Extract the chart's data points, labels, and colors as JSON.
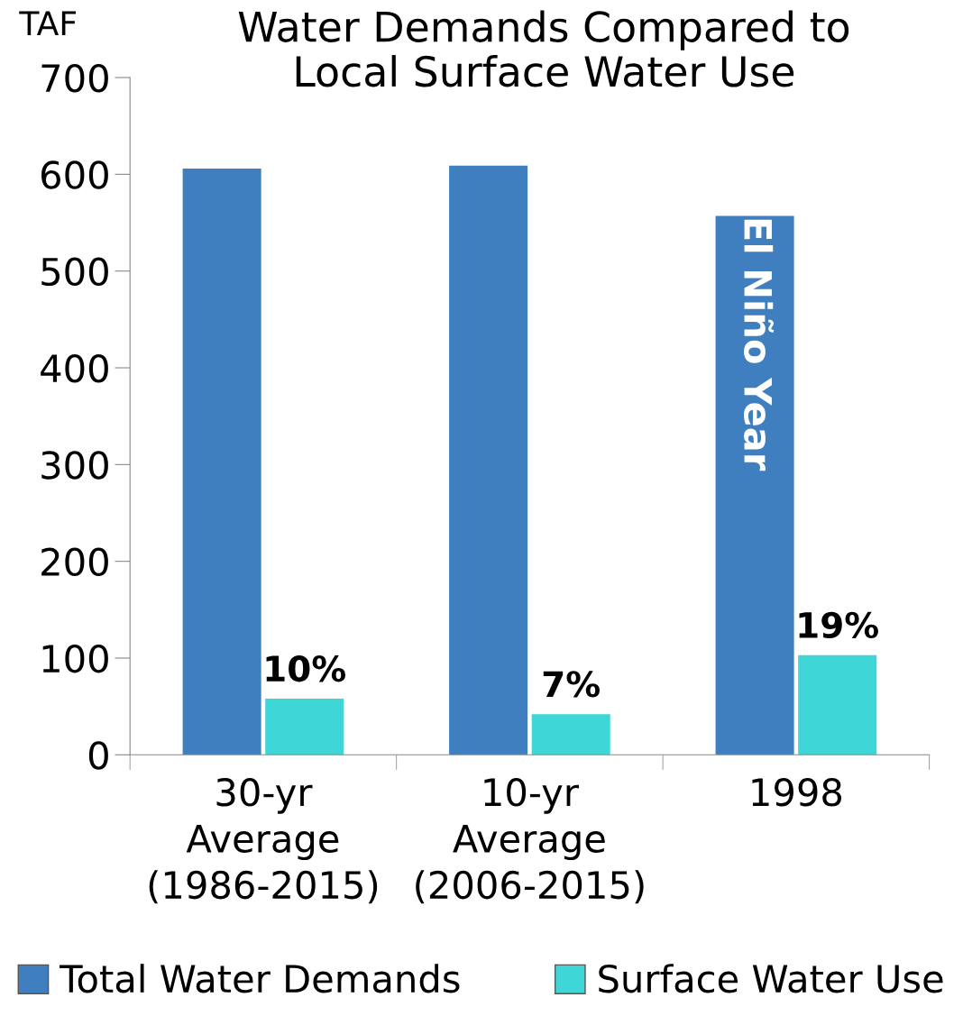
{
  "chart_data": {
    "type": "bar",
    "title": "Water Demands Compared to\nLocal Surface Water Use",
    "ylabel": "TAF",
    "categories": [
      "30-yr\nAverage\n(1986-2015)",
      "10-yr\nAverage\n(2006-2015)",
      "1998"
    ],
    "series": [
      {
        "name": "Total Water Demands",
        "color": "#3f7fbf",
        "values": [
          606,
          609,
          557
        ]
      },
      {
        "name": "Surface Water Use",
        "color": "#3fd6d8",
        "values": [
          58,
          42,
          103
        ]
      }
    ],
    "ylim": [
      0,
      700
    ],
    "yticks": [
      0,
      100,
      200,
      300,
      400,
      500,
      600,
      700
    ],
    "annotations": [
      {
        "text": "El Niño Year",
        "x": "1998",
        "y": 425
      },
      {
        "text": "10%",
        "x": "30-yr\nAverage\n(1986-2015)",
        "y": 58
      },
      {
        "text": "7%",
        "x": "10-yr\nAverage\n(2006-2015)",
        "y": 42
      },
      {
        "text": "19%",
        "x": "1998",
        "y": 103
      }
    ],
    "grid": false,
    "legend": "bottom"
  }
}
